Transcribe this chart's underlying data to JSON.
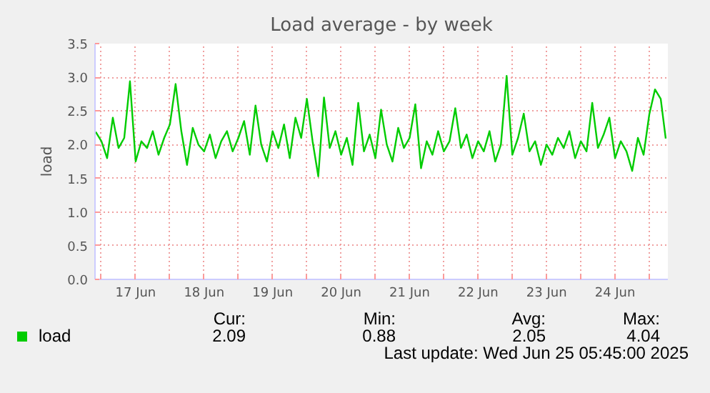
{
  "chart_data": {
    "type": "line",
    "title": "Load average - by week",
    "ylabel": "load",
    "x": [
      "2025-06-16T22:00",
      "2025-06-17T00:00",
      "2025-06-17T02:00",
      "2025-06-17T04:00",
      "2025-06-17T06:00",
      "2025-06-17T08:00",
      "2025-06-17T10:00",
      "2025-06-17T12:00",
      "2025-06-17T14:00",
      "2025-06-17T16:00",
      "2025-06-17T18:00",
      "2025-06-17T20:00",
      "2025-06-17T22:00",
      "2025-06-18T00:00",
      "2025-06-18T02:00",
      "2025-06-18T04:00",
      "2025-06-18T06:00",
      "2025-06-18T08:00",
      "2025-06-18T10:00",
      "2025-06-18T12:00",
      "2025-06-18T14:00",
      "2025-06-18T16:00",
      "2025-06-18T18:00",
      "2025-06-18T20:00",
      "2025-06-18T22:00",
      "2025-06-19T00:00",
      "2025-06-19T02:00",
      "2025-06-19T04:00",
      "2025-06-19T06:00",
      "2025-06-19T08:00",
      "2025-06-19T10:00",
      "2025-06-19T12:00",
      "2025-06-19T14:00",
      "2025-06-19T16:00",
      "2025-06-19T18:00",
      "2025-06-19T20:00",
      "2025-06-19T22:00",
      "2025-06-20T00:00",
      "2025-06-20T02:00",
      "2025-06-20T04:00",
      "2025-06-20T06:00",
      "2025-06-20T08:00",
      "2025-06-20T10:00",
      "2025-06-20T12:00",
      "2025-06-20T14:00",
      "2025-06-20T16:00",
      "2025-06-20T18:00",
      "2025-06-20T20:00",
      "2025-06-20T22:00",
      "2025-06-21T00:00",
      "2025-06-21T02:00",
      "2025-06-21T04:00",
      "2025-06-21T06:00",
      "2025-06-21T08:00",
      "2025-06-21T10:00",
      "2025-06-21T12:00",
      "2025-06-21T14:00",
      "2025-06-21T16:00",
      "2025-06-21T18:00",
      "2025-06-21T20:00",
      "2025-06-21T22:00",
      "2025-06-22T00:00",
      "2025-06-22T02:00",
      "2025-06-22T04:00",
      "2025-06-22T06:00",
      "2025-06-22T08:00",
      "2025-06-22T10:00",
      "2025-06-22T12:00",
      "2025-06-22T14:00",
      "2025-06-22T16:00",
      "2025-06-22T18:00",
      "2025-06-22T20:00",
      "2025-06-22T22:00",
      "2025-06-23T00:00",
      "2025-06-23T02:00",
      "2025-06-23T04:00",
      "2025-06-23T06:00",
      "2025-06-23T08:00",
      "2025-06-23T10:00",
      "2025-06-23T12:00",
      "2025-06-23T14:00",
      "2025-06-23T16:00",
      "2025-06-23T18:00",
      "2025-06-23T20:00",
      "2025-06-23T22:00",
      "2025-06-24T00:00",
      "2025-06-24T02:00",
      "2025-06-24T04:00",
      "2025-06-24T06:00",
      "2025-06-24T08:00",
      "2025-06-24T10:00",
      "2025-06-24T12:00",
      "2025-06-24T14:00",
      "2025-06-24T16:00",
      "2025-06-24T18:00",
      "2025-06-24T20:00",
      "2025-06-24T22:00",
      "2025-06-25T00:00",
      "2025-06-25T02:00",
      "2025-06-25T04:00",
      "2025-06-25T05:45"
    ],
    "series": [
      {
        "name": "load",
        "color": "#00cc00",
        "values": [
          2.19,
          2.05,
          1.8,
          2.4,
          1.95,
          2.1,
          2.94,
          1.75,
          2.05,
          1.95,
          2.2,
          1.85,
          2.1,
          2.3,
          2.9,
          2.2,
          1.7,
          2.25,
          2.0,
          1.9,
          2.15,
          1.8,
          2.05,
          2.2,
          1.9,
          2.1,
          2.35,
          1.85,
          2.58,
          2.0,
          1.75,
          2.2,
          1.95,
          2.3,
          1.8,
          2.4,
          2.1,
          2.68,
          2.05,
          1.53,
          2.7,
          1.95,
          2.2,
          1.85,
          2.1,
          1.7,
          2.62,
          1.9,
          2.15,
          1.8,
          2.52,
          2.0,
          1.75,
          2.25,
          1.95,
          2.1,
          2.6,
          1.65,
          2.05,
          1.85,
          2.2,
          1.9,
          2.05,
          2.54,
          1.95,
          2.15,
          1.8,
          2.05,
          1.9,
          2.2,
          1.75,
          2.0,
          3.02,
          1.85,
          2.1,
          2.46,
          1.9,
          2.05,
          1.7,
          2.0,
          1.85,
          2.1,
          1.95,
          2.2,
          1.8,
          2.05,
          1.9,
          2.62,
          1.95,
          2.15,
          2.4,
          1.8,
          2.05,
          1.9,
          1.61,
          2.1,
          1.85,
          2.45,
          2.82,
          2.68,
          2.09
        ]
      }
    ],
    "xlim": [
      "2025-06-16T21:45",
      "2025-06-25T06:30"
    ],
    "xticks": [
      {
        "value": "2025-06-17T00:00",
        "label": null
      },
      {
        "value": "2025-06-17T12:00",
        "label": "17 Jun"
      },
      {
        "value": "2025-06-18T00:00",
        "label": null
      },
      {
        "value": "2025-06-18T12:00",
        "label": "18 Jun"
      },
      {
        "value": "2025-06-19T00:00",
        "label": null
      },
      {
        "value": "2025-06-19T12:00",
        "label": "19 Jun"
      },
      {
        "value": "2025-06-20T00:00",
        "label": null
      },
      {
        "value": "2025-06-20T12:00",
        "label": "20 Jun"
      },
      {
        "value": "2025-06-21T00:00",
        "label": null
      },
      {
        "value": "2025-06-21T12:00",
        "label": "21 Jun"
      },
      {
        "value": "2025-06-22T00:00",
        "label": null
      },
      {
        "value": "2025-06-22T12:00",
        "label": "22 Jun"
      },
      {
        "value": "2025-06-23T00:00",
        "label": null
      },
      {
        "value": "2025-06-23T12:00",
        "label": "23 Jun"
      },
      {
        "value": "2025-06-24T00:00",
        "label": null
      },
      {
        "value": "2025-06-24T12:00",
        "label": "24 Jun"
      },
      {
        "value": "2025-06-25T00:00",
        "label": null
      }
    ],
    "ylim": [
      0,
      3.5
    ],
    "yticks": [
      {
        "value": 0,
        "label": "0.0"
      },
      {
        "value": 0.5,
        "label": "0.5"
      },
      {
        "value": 1,
        "label": "1.0"
      },
      {
        "value": 1.5,
        "label": "1.5"
      },
      {
        "value": 2,
        "label": "2.0"
      },
      {
        "value": 2.5,
        "label": "2.5"
      },
      {
        "value": 3,
        "label": "3.0"
      },
      {
        "value": 3.5,
        "label": "3.5"
      }
    ],
    "grid": true,
    "legend": "bottom",
    "line_style": "solid",
    "annotations": [
      "Cur:",
      "Min:",
      "Avg:",
      "Max:",
      "2.09",
      "0.88",
      "2.05",
      "4.04",
      "Last update: Wed Jun 25 05:45:00 2025"
    ]
  }
}
